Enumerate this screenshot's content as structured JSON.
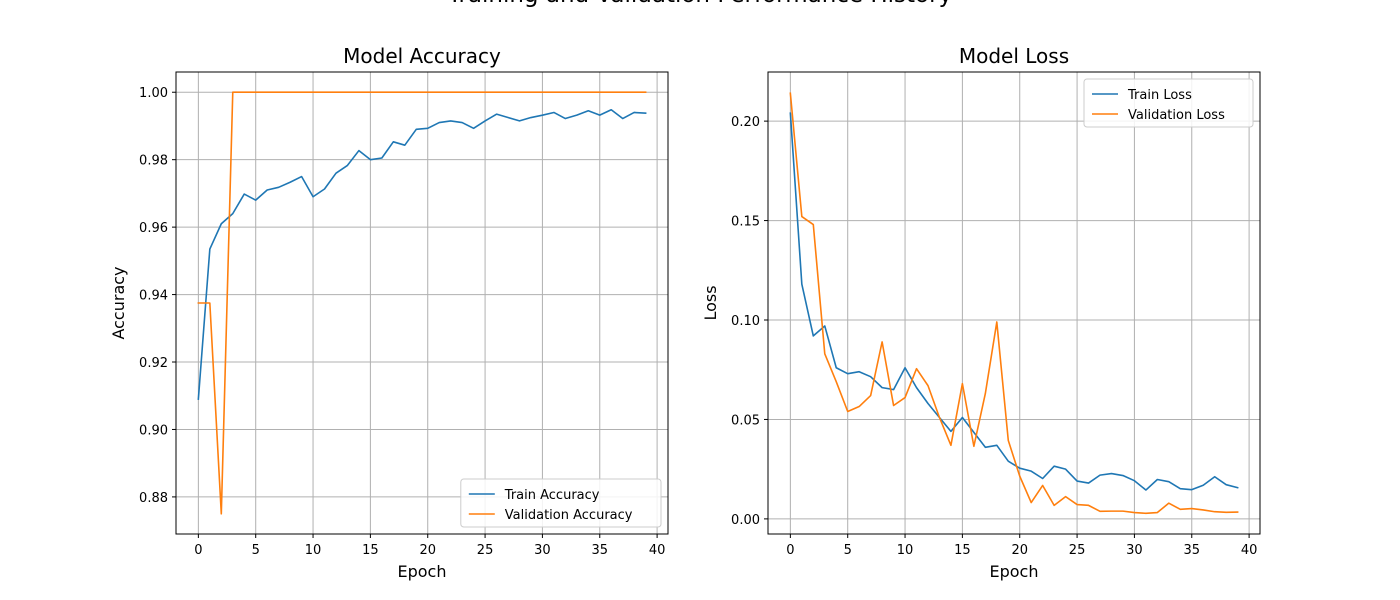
{
  "figure": {
    "suptitle": "Training and Validation Performance History"
  },
  "chart_data": [
    {
      "type": "line",
      "title": "Model Accuracy",
      "xlabel": "Epoch",
      "ylabel": "Accuracy",
      "xlim": [
        -1.95,
        40.95
      ],
      "ylim": [
        0.869,
        1.006
      ],
      "xticks": [
        0,
        5,
        10,
        15,
        20,
        25,
        30,
        35,
        40
      ],
      "yticks": [
        0.88,
        0.9,
        0.92,
        0.94,
        0.96,
        0.98,
        1.0
      ],
      "ytick_labels": [
        "0.88",
        "0.90",
        "0.92",
        "0.94",
        "0.96",
        "0.98",
        "1.00"
      ],
      "grid": true,
      "legend": "lower-right",
      "x": [
        0,
        1,
        2,
        3,
        4,
        5,
        6,
        7,
        8,
        9,
        10,
        11,
        12,
        13,
        14,
        15,
        16,
        17,
        18,
        19,
        20,
        21,
        22,
        23,
        24,
        25,
        26,
        27,
        28,
        29,
        30,
        31,
        32,
        33,
        34,
        35,
        36,
        37,
        38,
        39
      ],
      "series": [
        {
          "name": "Train Accuracy",
          "color": "#1f77b4",
          "values": [
            0.909,
            0.9535,
            0.961,
            0.964,
            0.9698,
            0.968,
            0.971,
            0.9718,
            0.9733,
            0.975,
            0.969,
            0.9713,
            0.976,
            0.9783,
            0.9827,
            0.98,
            0.9805,
            0.9853,
            0.9843,
            0.989,
            0.9893,
            0.991,
            0.9915,
            0.991,
            0.9893,
            0.9915,
            0.9935,
            0.9925,
            0.9915,
            0.9925,
            0.9932,
            0.994,
            0.9922,
            0.9932,
            0.9945,
            0.9932,
            0.9948,
            0.9922,
            0.994,
            0.9938
          ]
        },
        {
          "name": "Validation Accuracy",
          "color": "#ff7f0e",
          "values": [
            0.9375,
            0.9375,
            0.875,
            1.0,
            1.0,
            1.0,
            1.0,
            1.0,
            1.0,
            1.0,
            1.0,
            1.0,
            1.0,
            1.0,
            1.0,
            1.0,
            1.0,
            1.0,
            1.0,
            1.0,
            1.0,
            1.0,
            1.0,
            1.0,
            1.0,
            1.0,
            1.0,
            1.0,
            1.0,
            1.0,
            1.0,
            1.0,
            1.0,
            1.0,
            1.0,
            1.0,
            1.0,
            1.0,
            1.0,
            1.0
          ]
        }
      ]
    },
    {
      "type": "line",
      "title": "Model Loss",
      "xlabel": "Epoch",
      "ylabel": "Loss",
      "xlim": [
        -1.95,
        40.95
      ],
      "ylim": [
        -0.0076,
        0.2247
      ],
      "xticks": [
        0,
        5,
        10,
        15,
        20,
        25,
        30,
        35,
        40
      ],
      "yticks": [
        0.0,
        0.05,
        0.1,
        0.15,
        0.2
      ],
      "ytick_labels": [
        "0.00",
        "0.05",
        "0.10",
        "0.15",
        "0.20"
      ],
      "grid": true,
      "legend": "upper-right",
      "x": [
        0,
        1,
        2,
        3,
        4,
        5,
        6,
        7,
        8,
        9,
        10,
        11,
        12,
        13,
        14,
        15,
        16,
        17,
        18,
        19,
        20,
        21,
        22,
        23,
        24,
        25,
        26,
        27,
        28,
        29,
        30,
        31,
        32,
        33,
        34,
        35,
        36,
        37,
        38,
        39
      ],
      "series": [
        {
          "name": "Train Loss",
          "color": "#1f77b4",
          "values": [
            0.204,
            0.118,
            0.092,
            0.097,
            0.076,
            0.073,
            0.074,
            0.0715,
            0.066,
            0.065,
            0.076,
            0.066,
            0.058,
            0.051,
            0.044,
            0.051,
            0.0435,
            0.036,
            0.037,
            0.029,
            0.0255,
            0.024,
            0.0203,
            0.0265,
            0.025,
            0.019,
            0.018,
            0.022,
            0.0228,
            0.0218,
            0.0192,
            0.0145,
            0.0198,
            0.0187,
            0.0152,
            0.0147,
            0.0169,
            0.0212,
            0.0172,
            0.0157
          ]
        },
        {
          "name": "Validation Loss",
          "color": "#ff7f0e",
          "values": [
            0.214,
            0.152,
            0.148,
            0.083,
            0.069,
            0.054,
            0.0565,
            0.062,
            0.089,
            0.057,
            0.061,
            0.0755,
            0.067,
            0.051,
            0.037,
            0.068,
            0.0365,
            0.063,
            0.099,
            0.0395,
            0.0215,
            0.0082,
            0.0168,
            0.0068,
            0.0112,
            0.0072,
            0.0068,
            0.0038,
            0.0039,
            0.0039,
            0.0032,
            0.0028,
            0.0032,
            0.0079,
            0.0048,
            0.0052,
            0.0045,
            0.0036,
            0.0033,
            0.0034
          ]
        }
      ]
    }
  ]
}
